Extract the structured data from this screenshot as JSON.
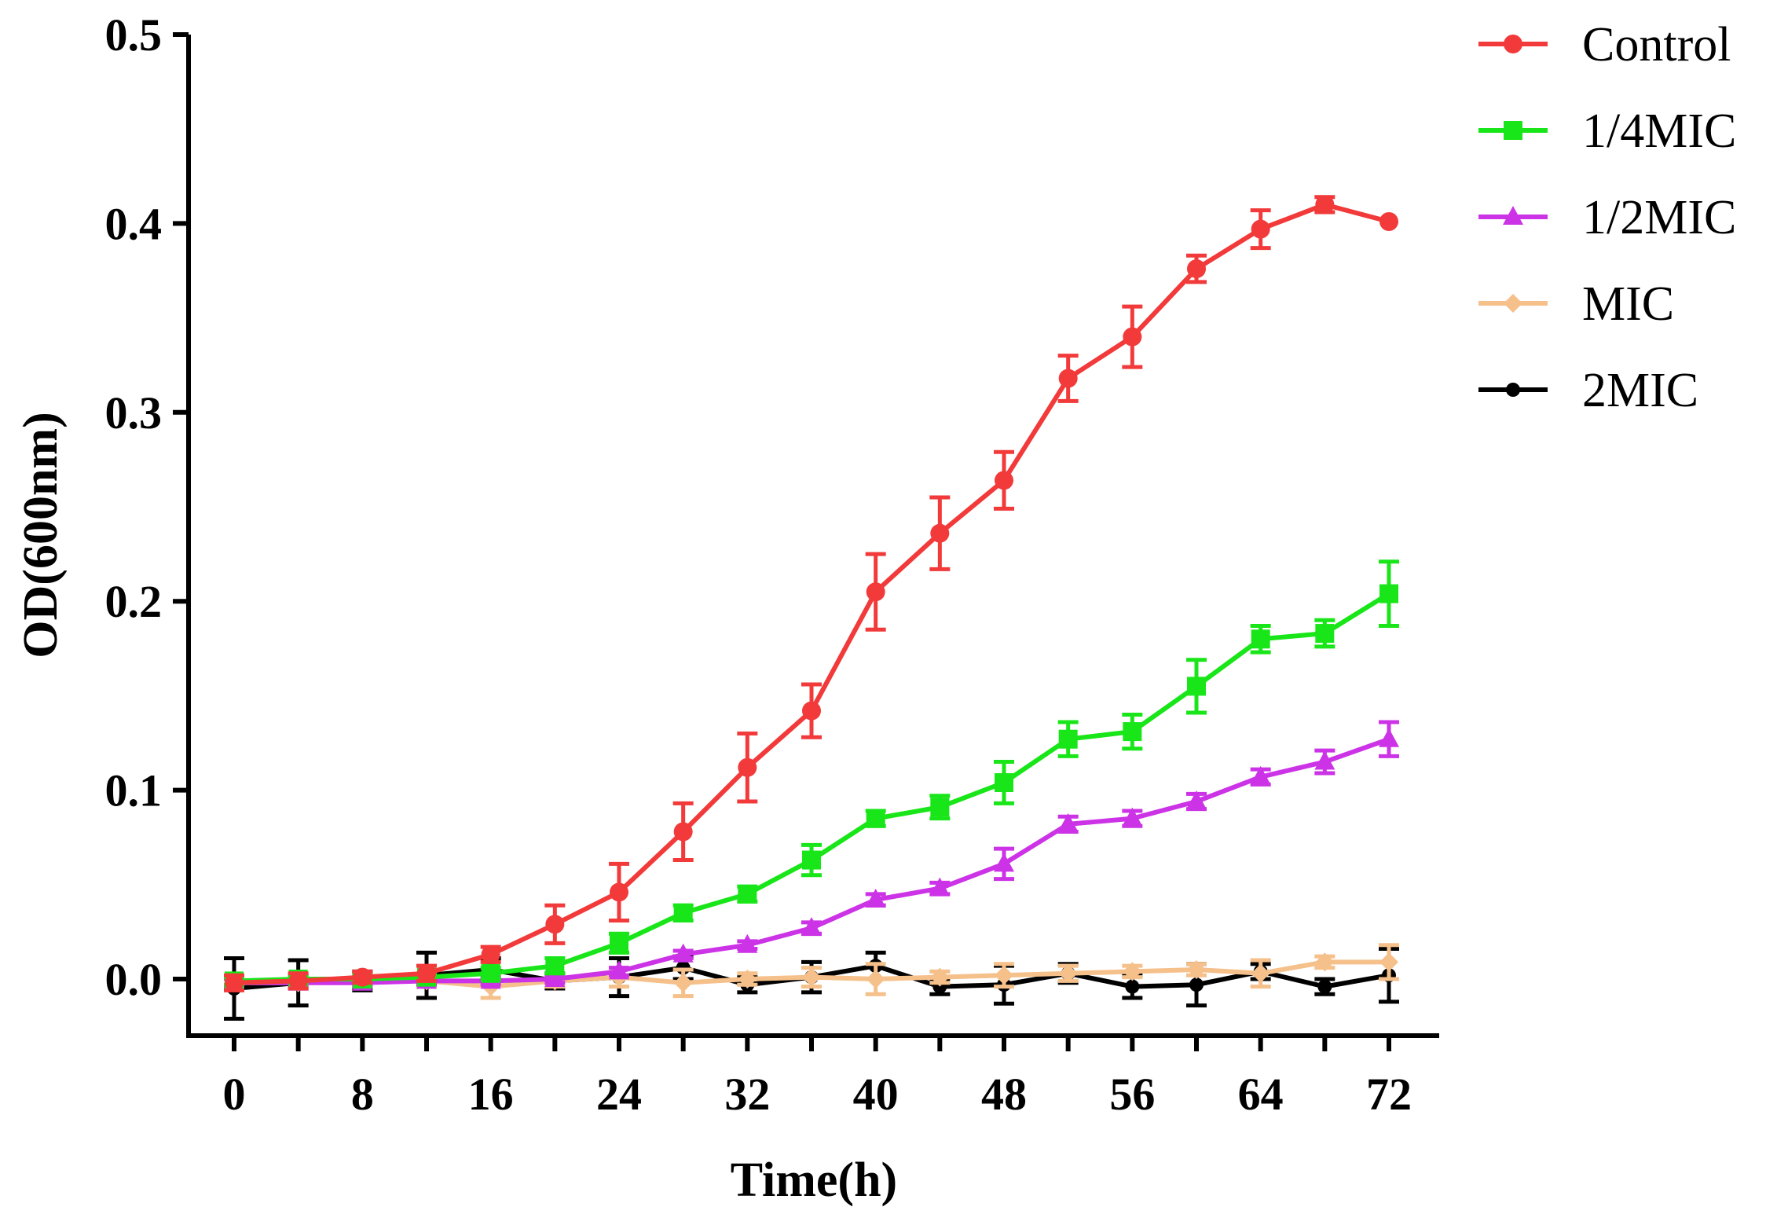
{
  "chart_data": {
    "type": "line",
    "title": "",
    "xlabel": "Time(h)",
    "ylabel": "OD(600nm)",
    "xlim": [
      -4,
      76
    ],
    "ylim": [
      -0.03,
      0.5
    ],
    "xticks": [
      0,
      8,
      16,
      24,
      32,
      40,
      48,
      56,
      64,
      72
    ],
    "xtick_labels": [
      "0",
      "8",
      "16",
      "24",
      "32",
      "40",
      "48",
      "56",
      "64",
      "72"
    ],
    "yticks": [
      0.0,
      0.1,
      0.2,
      0.3,
      0.4,
      0.5
    ],
    "ytick_labels": [
      "0.0",
      "0.1",
      "0.2",
      "0.3",
      "0.4",
      "0.5"
    ],
    "grid": false,
    "legend_position": "top-right",
    "x": [
      0,
      4,
      8,
      12,
      16,
      20,
      24,
      28,
      32,
      36,
      40,
      44,
      48,
      52,
      56,
      60,
      64,
      68,
      72
    ],
    "series": [
      {
        "name": "Control",
        "color": "#f23a3a",
        "marker": "circle",
        "values": [
          -0.002,
          -0.001,
          0.001,
          0.003,
          0.013,
          0.029,
          0.046,
          0.078,
          0.112,
          0.142,
          0.205,
          0.236,
          0.264,
          0.318,
          0.34,
          0.376,
          0.397,
          0.41,
          0.401
        ],
        "errors": [
          0.004,
          0.004,
          0.003,
          0.004,
          0.004,
          0.01,
          0.015,
          0.015,
          0.018,
          0.014,
          0.02,
          0.019,
          0.015,
          0.012,
          0.016,
          0.007,
          0.01,
          0.004,
          0
        ]
      },
      {
        "name": "1/4MIC",
        "color": "#19e619",
        "marker": "square",
        "values": [
          -0.001,
          0.0,
          0.0,
          0.001,
          0.003,
          0.007,
          0.019,
          0.035,
          0.045,
          0.063,
          0.085,
          0.091,
          0.104,
          0.127,
          0.131,
          0.155,
          0.18,
          0.183,
          0.204
        ],
        "errors": [
          0.002,
          0.002,
          0.002,
          0.002,
          0.003,
          0.004,
          0.005,
          0.004,
          0.004,
          0.008,
          0.004,
          0.006,
          0.011,
          0.009,
          0.009,
          0.014,
          0.007,
          0.007,
          0.017
        ]
      },
      {
        "name": "1/2MIC",
        "color": "#cc33e6",
        "marker": "triangle",
        "values": [
          -0.002,
          -0.002,
          -0.002,
          -0.001,
          -0.001,
          0.0,
          0.004,
          0.013,
          0.018,
          0.027,
          0.042,
          0.048,
          0.061,
          0.082,
          0.085,
          0.094,
          0.107,
          0.115,
          0.127
        ],
        "errors": [
          0.002,
          0.002,
          0.002,
          0.002,
          0.002,
          0.002,
          0.002,
          0.002,
          0.002,
          0.003,
          0.003,
          0.003,
          0.008,
          0.004,
          0.004,
          0.004,
          0.004,
          0.006,
          0.009
        ]
      },
      {
        "name": "MIC",
        "color": "#f5c08a",
        "marker": "diamond",
        "values": [
          -0.002,
          -0.002,
          -0.001,
          -0.001,
          -0.004,
          -0.001,
          0.001,
          -0.002,
          0.0,
          0.001,
          0.0,
          0.001,
          0.002,
          0.003,
          0.004,
          0.005,
          0.003,
          0.009,
          0.009
        ],
        "errors": [
          0.003,
          0.003,
          0.003,
          0.003,
          0.006,
          0.003,
          0.005,
          0.007,
          0.003,
          0.005,
          0.008,
          0.003,
          0.006,
          0.004,
          0.003,
          0.003,
          0.007,
          0.003,
          0.009
        ]
      },
      {
        "name": "2MIC",
        "color": "#000000",
        "marker": "circle-small",
        "values": [
          -0.005,
          -0.002,
          -0.001,
          0.002,
          0.005,
          -0.001,
          0.001,
          0.006,
          -0.003,
          0.001,
          0.007,
          -0.004,
          -0.003,
          0.003,
          -0.004,
          -0.003,
          0.004,
          -0.004,
          0.002
        ],
        "errors": [
          0.016,
          0.012,
          0.005,
          0.012,
          0.006,
          0.004,
          0.01,
          0.006,
          0.004,
          0.008,
          0.007,
          0.004,
          0.01,
          0.005,
          0.006,
          0.011,
          0.004,
          0.004,
          0.014
        ]
      }
    ]
  }
}
